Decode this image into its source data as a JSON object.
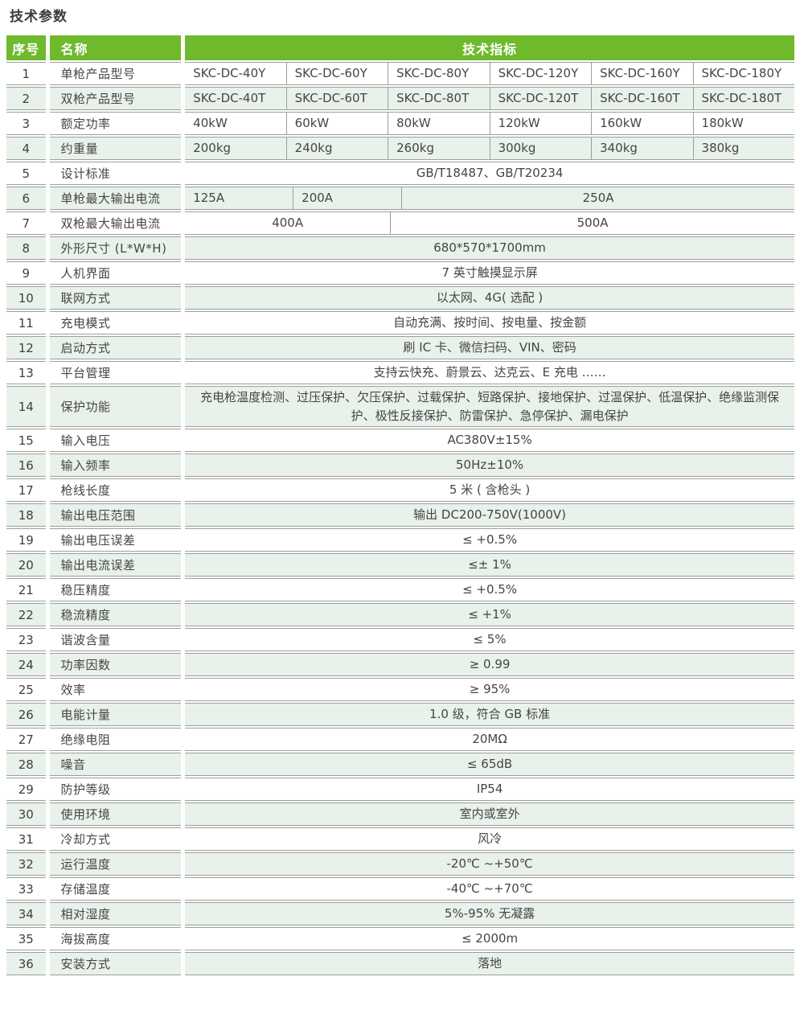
{
  "title": "技术参数",
  "colors": {
    "header_green": "#6eba2c",
    "alt_row_bg": "#e8f1ea",
    "border_gray": "#9b9f9c",
    "header_text": "#ffffff",
    "body_text": "#454545"
  },
  "header": {
    "no": "序号",
    "name": "名称",
    "spec": "技术指标"
  },
  "rows": [
    {
      "no": "1",
      "name": "单枪产品型号",
      "cells": [
        {
          "text": "SKC-DC-40Y",
          "span": 1
        },
        {
          "text": "SKC-DC-60Y",
          "span": 1
        },
        {
          "text": "SKC-DC-80Y",
          "span": 1
        },
        {
          "text": "SKC-DC-120Y",
          "span": 1
        },
        {
          "text": "SKC-DC-160Y",
          "span": 1
        },
        {
          "text": "SKC-DC-180Y",
          "span": 1
        }
      ]
    },
    {
      "no": "2",
      "name": "双枪产品型号",
      "cells": [
        {
          "text": "SKC-DC-40T",
          "span": 1
        },
        {
          "text": "SKC-DC-60T",
          "span": 1
        },
        {
          "text": "SKC-DC-80T",
          "span": 1
        },
        {
          "text": "SKC-DC-120T",
          "span": 1
        },
        {
          "text": "SKC-DC-160T",
          "span": 1
        },
        {
          "text": "SKC-DC-180T",
          "span": 1
        }
      ]
    },
    {
      "no": "3",
      "name": "额定功率",
      "cells": [
        {
          "text": "40kW",
          "span": 1
        },
        {
          "text": "60kW",
          "span": 1
        },
        {
          "text": "80kW",
          "span": 1
        },
        {
          "text": "120kW",
          "span": 1
        },
        {
          "text": "160kW",
          "span": 1
        },
        {
          "text": "180kW",
          "span": 1
        }
      ]
    },
    {
      "no": "4",
      "name": "约重量",
      "cells": [
        {
          "text": "200kg",
          "span": 1
        },
        {
          "text": "240kg",
          "span": 1
        },
        {
          "text": "260kg",
          "span": 1
        },
        {
          "text": "300kg",
          "span": 1
        },
        {
          "text": "340kg",
          "span": 1
        },
        {
          "text": "380kg",
          "span": 1
        }
      ]
    },
    {
      "no": "5",
      "name": "设计标准",
      "cells": [
        {
          "text": "GB/T18487、GB/T20234",
          "span": 6
        }
      ]
    },
    {
      "no": "6",
      "name": "单枪最大输出电流",
      "cells": [
        {
          "text": "125A",
          "span": 1
        },
        {
          "text": "200A",
          "span": 1
        },
        {
          "text": "250A",
          "span": 4
        }
      ]
    },
    {
      "no": "7",
      "name": "双枪最大输出电流",
      "cells": [
        {
          "text": "400A",
          "span": 2
        },
        {
          "text": "500A",
          "span": 4
        }
      ]
    },
    {
      "no": "8",
      "name": "外形尺寸 (L*W*H)",
      "cells": [
        {
          "text": "680*570*1700mm",
          "span": 6
        }
      ]
    },
    {
      "no": "9",
      "name": "人机界面",
      "cells": [
        {
          "text": "7 英寸触摸显示屏",
          "span": 6
        }
      ]
    },
    {
      "no": "10",
      "name": "联网方式",
      "cells": [
        {
          "text": "以太网、4G( 选配 )",
          "span": 6
        }
      ]
    },
    {
      "no": "11",
      "name": "充电模式",
      "cells": [
        {
          "text": "自动充满、按时间、按电量、按金额",
          "span": 6
        }
      ]
    },
    {
      "no": "12",
      "name": "启动方式",
      "cells": [
        {
          "text": "刷 IC 卡、微信扫码、VIN、密码",
          "span": 6
        }
      ]
    },
    {
      "no": "13",
      "name": "平台管理",
      "cells": [
        {
          "text": "支持云快充、蔚景云、达克云、E 充电 ……",
          "span": 6
        }
      ]
    },
    {
      "no": "14",
      "name": "保护功能",
      "cells": [
        {
          "text": "充电枪温度检测、过压保护、欠压保护、过载保护、短路保护、接地保护、过温保护、低温保护、绝缘监测保护、极性反接保护、防雷保护、急停保护、漏电保护",
          "span": 6
        }
      ]
    },
    {
      "no": "15",
      "name": "输入电压",
      "cells": [
        {
          "text": "AC380V±15%",
          "span": 6
        }
      ]
    },
    {
      "no": "16",
      "name": "输入频率",
      "cells": [
        {
          "text": "50Hz±10%",
          "span": 6
        }
      ]
    },
    {
      "no": "17",
      "name": "枪线长度",
      "cells": [
        {
          "text": "5 米 ( 含枪头 )",
          "span": 6
        }
      ]
    },
    {
      "no": "18",
      "name": "输出电压范围",
      "cells": [
        {
          "text": "输出 DC200-750V(1000V)",
          "span": 6
        }
      ]
    },
    {
      "no": "19",
      "name": "输出电压误差",
      "cells": [
        {
          "text": "≤ +0.5%",
          "span": 6
        }
      ]
    },
    {
      "no": "20",
      "name": "输出电流误差",
      "cells": [
        {
          "text": "≤± 1%",
          "span": 6
        }
      ]
    },
    {
      "no": "21",
      "name": "稳压精度",
      "cells": [
        {
          "text": "≤ +0.5%",
          "span": 6
        }
      ]
    },
    {
      "no": "22",
      "name": "稳流精度",
      "cells": [
        {
          "text": "≤ +1%",
          "span": 6
        }
      ]
    },
    {
      "no": "23",
      "name": "谐波含量",
      "cells": [
        {
          "text": "≤ 5%",
          "span": 6
        }
      ]
    },
    {
      "no": "24",
      "name": "功率因数",
      "cells": [
        {
          "text": "≥ 0.99",
          "span": 6
        }
      ]
    },
    {
      "no": "25",
      "name": "效率",
      "cells": [
        {
          "text": "≥ 95%",
          "span": 6
        }
      ]
    },
    {
      "no": "26",
      "name": "电能计量",
      "cells": [
        {
          "text": "1.0 级，符合 GB 标准",
          "span": 6
        }
      ]
    },
    {
      "no": "27",
      "name": "绝缘电阻",
      "cells": [
        {
          "text": "20MΩ",
          "span": 6
        }
      ]
    },
    {
      "no": "28",
      "name": "噪音",
      "cells": [
        {
          "text": "≤ 65dB",
          "span": 6
        }
      ]
    },
    {
      "no": "29",
      "name": "防护等级",
      "cells": [
        {
          "text": "IP54",
          "span": 6
        }
      ]
    },
    {
      "no": "30",
      "name": "使用环境",
      "cells": [
        {
          "text": "室内或室外",
          "span": 6
        }
      ]
    },
    {
      "no": "31",
      "name": "冷却方式",
      "cells": [
        {
          "text": "风冷",
          "span": 6
        }
      ]
    },
    {
      "no": "32",
      "name": "运行温度",
      "cells": [
        {
          "text": "-20℃ ~+50℃",
          "span": 6
        }
      ]
    },
    {
      "no": "33",
      "name": "存储温度",
      "cells": [
        {
          "text": "-40℃ ~+70℃",
          "span": 6
        }
      ]
    },
    {
      "no": "34",
      "name": "相对湿度",
      "cells": [
        {
          "text": "5%-95% 无凝露",
          "span": 6
        }
      ]
    },
    {
      "no": "35",
      "name": "海拔高度",
      "cells": [
        {
          "text": "≤ 2000m",
          "span": 6
        }
      ]
    },
    {
      "no": "36",
      "name": "安装方式",
      "cells": [
        {
          "text": "落地",
          "span": 6
        }
      ]
    }
  ]
}
